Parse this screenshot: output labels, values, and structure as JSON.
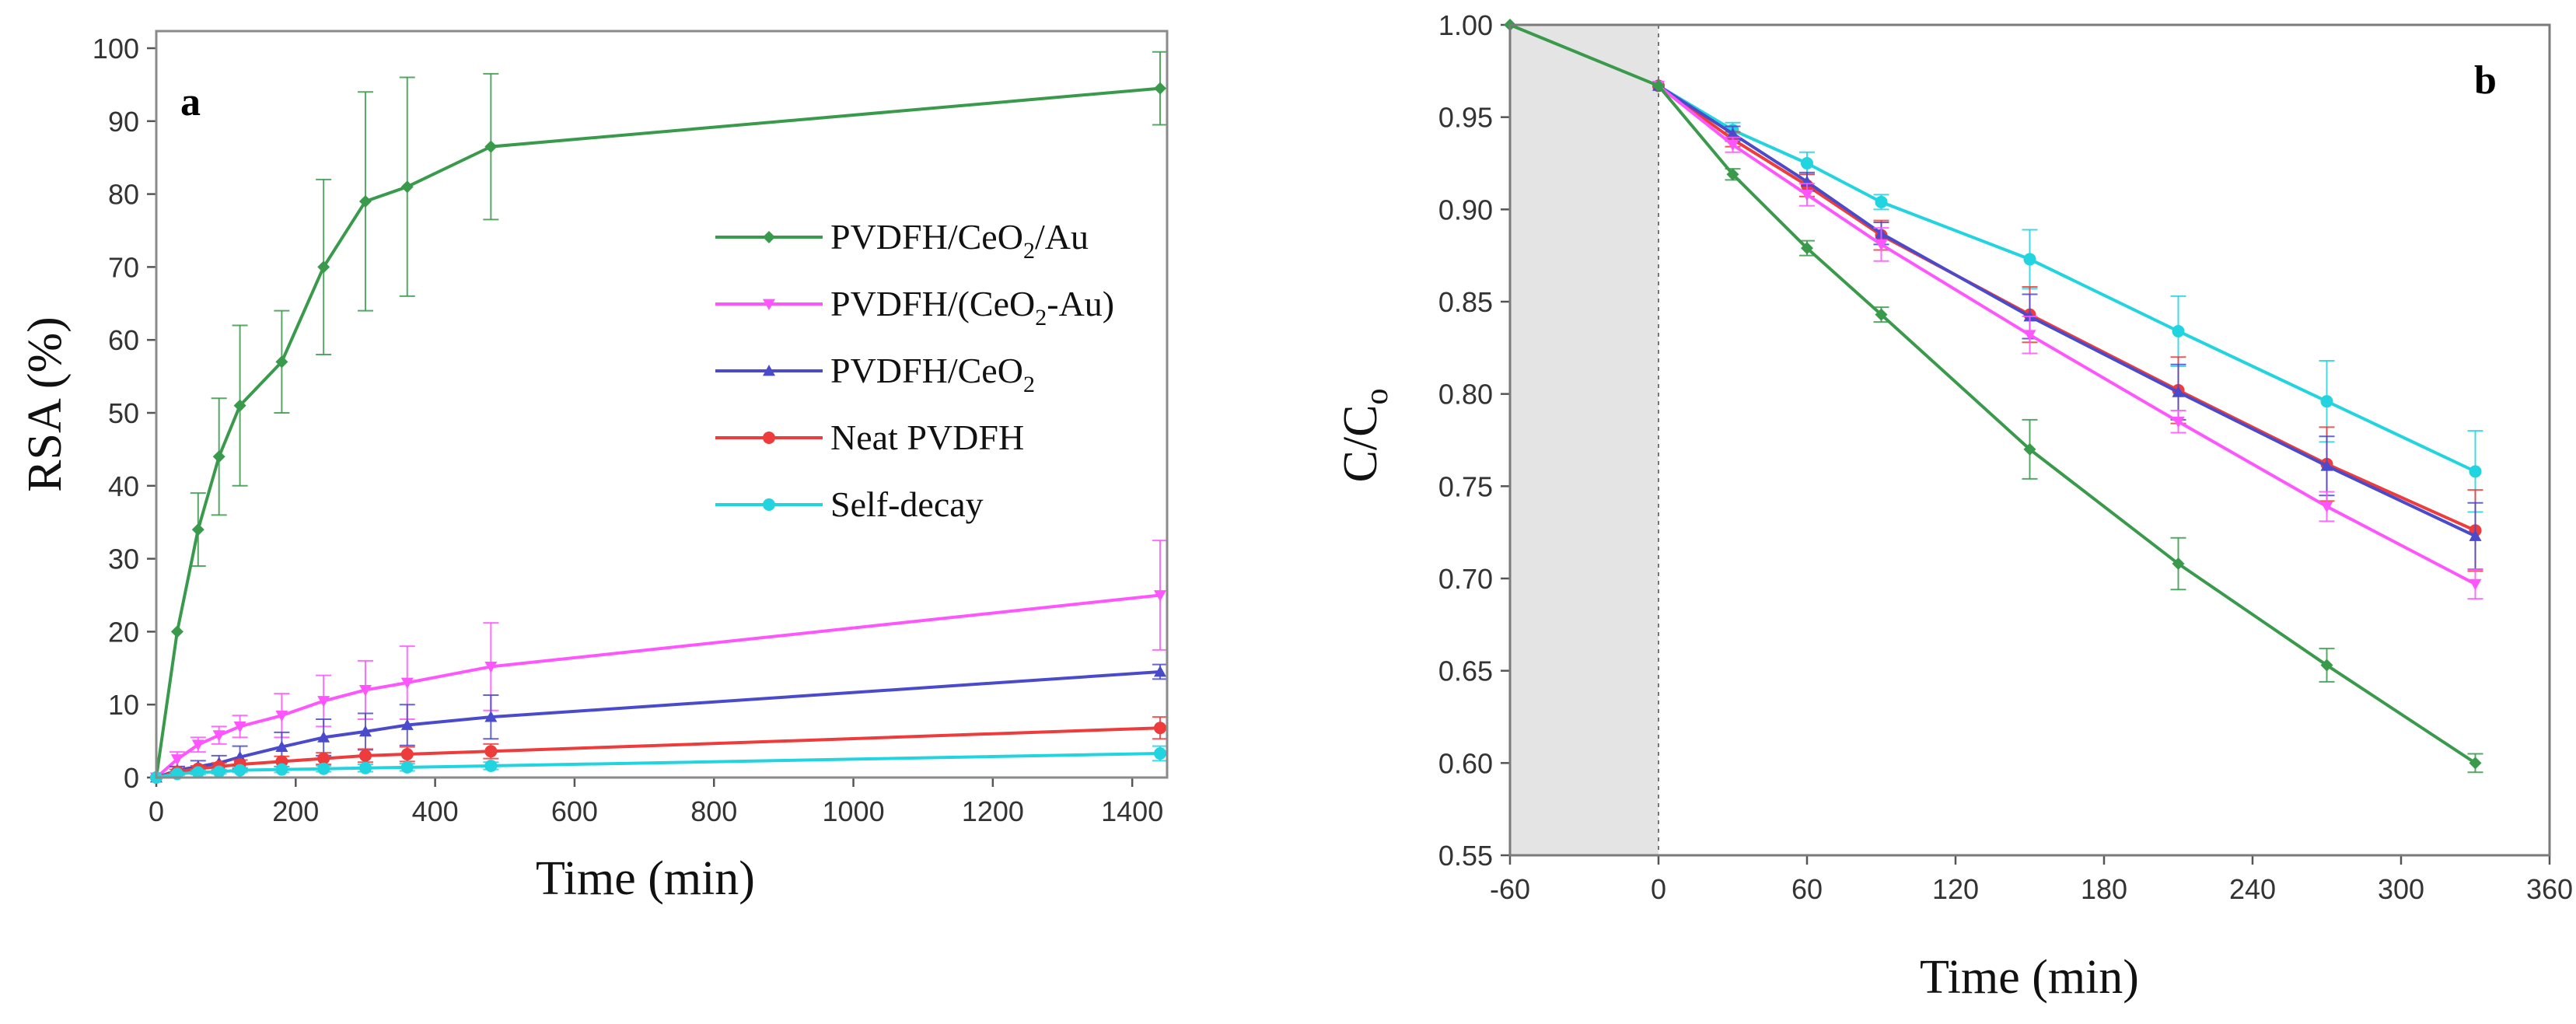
{
  "chart_data": [
    {
      "type": "line",
      "panel_label": "a",
      "xlabel": "Time (min)",
      "ylabel": "RSA (%)",
      "xlim": [
        0,
        1450
      ],
      "ylim": [
        0,
        100
      ],
      "xticks": [
        0,
        200,
        400,
        600,
        800,
        1000,
        1200,
        1400
      ],
      "yticks": [
        0,
        10,
        20,
        30,
        40,
        50,
        60,
        70,
        80,
        90,
        100
      ],
      "legend_position": "right-middle",
      "series": [
        {
          "name": "PVDFH/CeO2/Au",
          "legend": {
            "base": "PVDFH/CeO",
            "sub": "2",
            "tail": "/Au"
          },
          "color": "#3a9a4c",
          "marker": "diamond",
          "x": [
            0,
            30,
            60,
            90,
            120,
            180,
            240,
            300,
            360,
            480,
            1440
          ],
          "y": [
            0,
            20,
            34,
            44,
            51,
            57,
            70,
            79,
            81,
            86.5,
            94.5
          ],
          "err": [
            0,
            0,
            5,
            8,
            11,
            7,
            12,
            15,
            15,
            10,
            5
          ]
        },
        {
          "name": "PVDFH/(CeO2-Au)",
          "legend": {
            "base": "PVDFH/(CeO",
            "sub": "2",
            "tail": "-Au)"
          },
          "color": "#ff55ff",
          "marker": "triangle-down",
          "x": [
            0,
            30,
            60,
            90,
            120,
            180,
            240,
            300,
            360,
            480,
            1440
          ],
          "y": [
            0,
            2.5,
            4.5,
            5.8,
            7,
            8.5,
            10.5,
            12,
            13,
            15.2,
            25
          ],
          "err": [
            0,
            1,
            1,
            1.2,
            1.5,
            3,
            3.5,
            4,
            5,
            6,
            7.5
          ]
        },
        {
          "name": "PVDFH/CeO2",
          "legend": {
            "base": "PVDFH/CeO",
            "sub": "2",
            "tail": ""
          },
          "color": "#4a4acc",
          "marker": "triangle-up",
          "x": [
            0,
            30,
            60,
            90,
            120,
            180,
            240,
            300,
            360,
            480,
            1440
          ],
          "y": [
            0,
            1,
            1.5,
            2,
            2.8,
            4.2,
            5.5,
            6.3,
            7.2,
            8.3,
            14.5
          ],
          "err": [
            0,
            0.5,
            0.8,
            1,
            1.5,
            2,
            2.5,
            2.5,
            2.8,
            3,
            1
          ]
        },
        {
          "name": "Neat PVDFH",
          "legend": {
            "base": "Neat PVDFH",
            "sub": "",
            "tail": ""
          },
          "color": "#ee3b3b",
          "marker": "circle",
          "x": [
            0,
            30,
            60,
            90,
            120,
            180,
            240,
            300,
            360,
            480,
            1440
          ],
          "y": [
            0,
            0.8,
            1.2,
            1.5,
            1.8,
            2.2,
            2.6,
            3,
            3.2,
            3.6,
            6.8
          ],
          "err": [
            0,
            0.3,
            0.4,
            0.5,
            0.6,
            0.7,
            0.8,
            0.9,
            1,
            1,
            1.5
          ]
        },
        {
          "name": "Self-decay",
          "legend": {
            "base": " Self-decay",
            "sub": "",
            "tail": ""
          },
          "color": "#22d3e0",
          "marker": "circle",
          "x": [
            0,
            30,
            60,
            90,
            120,
            180,
            240,
            300,
            360,
            480,
            1440
          ],
          "y": [
            0,
            0.5,
            0.7,
            0.8,
            1,
            1.1,
            1.2,
            1.3,
            1.4,
            1.6,
            3.3
          ],
          "err": [
            0,
            0.2,
            0.3,
            0.3,
            0.3,
            0.4,
            0.4,
            0.5,
            0.5,
            0.5,
            1
          ]
        }
      ]
    },
    {
      "type": "line",
      "panel_label": "b",
      "xlabel": "Time (min)",
      "ylabel": "C/C",
      "ylabel_sub": "o",
      "xlim": [
        -60,
        360
      ],
      "ylim": [
        0.55,
        1.0
      ],
      "xticks": [
        -60,
        0,
        60,
        120,
        180,
        240,
        300,
        360
      ],
      "yticks": [
        0.55,
        0.6,
        0.65,
        0.7,
        0.75,
        0.8,
        0.85,
        0.9,
        0.95,
        1.0
      ],
      "ytick_labels": [
        "0.55",
        "0.60",
        "0.65",
        "0.70",
        "0.75",
        "0.80",
        "0.85",
        "0.90",
        "0.95",
        "1.00"
      ],
      "dark_region": [
        -60,
        0
      ],
      "shade_color": "#e4e4e4",
      "series": [
        {
          "name": "Self-decay",
          "color": "#22d3e0",
          "marker": "circle",
          "x": [
            0,
            30,
            60,
            90,
            150,
            210,
            270,
            330
          ],
          "y": [
            0.967,
            0.943,
            0.925,
            0.904,
            0.873,
            0.834,
            0.796,
            0.758
          ],
          "err": [
            0,
            0.004,
            0.006,
            0.004,
            0.016,
            0.019,
            0.022,
            0.022
          ]
        },
        {
          "name": "Neat PVDFH",
          "color": "#ee3b3b",
          "marker": "circle",
          "x": [
            0,
            30,
            60,
            90,
            150,
            210,
            270,
            330
          ],
          "y": [
            0.967,
            0.938,
            0.913,
            0.886,
            0.843,
            0.802,
            0.762,
            0.726
          ],
          "err": [
            0,
            0.004,
            0.006,
            0.008,
            0.015,
            0.018,
            0.02,
            0.022
          ]
        },
        {
          "name": "PVDFH/CeO2",
          "color": "#4a4acc",
          "marker": "triangle-up",
          "x": [
            0,
            30,
            60,
            90,
            150,
            210,
            270,
            330
          ],
          "y": [
            0.967,
            0.941,
            0.915,
            0.887,
            0.842,
            0.801,
            0.761,
            0.723
          ],
          "err": [
            0,
            0.004,
            0.005,
            0.006,
            0.012,
            0.015,
            0.016,
            0.018
          ]
        },
        {
          "name": "PVDFH/(CeO2-Au)",
          "color": "#ff55ff",
          "marker": "triangle-down",
          "x": [
            0,
            30,
            60,
            90,
            150,
            210,
            270,
            330
          ],
          "y": [
            0.967,
            0.935,
            0.908,
            0.881,
            0.832,
            0.785,
            0.739,
            0.697
          ],
          "err": [
            0,
            0.004,
            0.006,
            0.009,
            0.01,
            0.006,
            0.008,
            0.008
          ]
        },
        {
          "name": "PVDFH/CeO2/Au",
          "color": "#3a9a4c",
          "marker": "diamond",
          "x": [
            -60,
            0,
            30,
            60,
            90,
            150,
            210,
            270,
            330
          ],
          "y": [
            1.0,
            0.967,
            0.919,
            0.879,
            0.843,
            0.77,
            0.708,
            0.653,
            0.6
          ],
          "err": [
            0,
            0,
            0.003,
            0.004,
            0.004,
            0.016,
            0.014,
            0.009,
            0.005
          ]
        }
      ]
    }
  ]
}
